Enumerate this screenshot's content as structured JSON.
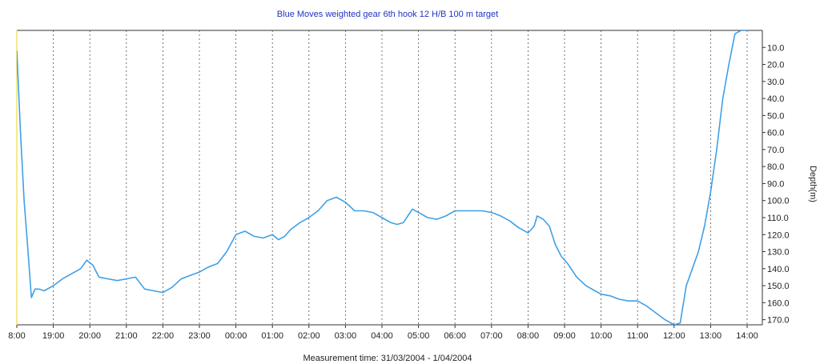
{
  "chart_data": {
    "type": "line",
    "title": "Blue Moves weighted gear 6th hook 12 H/B 100 m target",
    "xlabel": "Measurement time: 31/03/2004 - 1/04/2004",
    "ylabel": "Depth(m)",
    "x_tick_labels": [
      "8:00",
      "19:00",
      "20:00",
      "21:00",
      "22:00",
      "23:00",
      "00:00",
      "01:00",
      "02:00",
      "03:00",
      "04:00",
      "05:00",
      "06:00",
      "07:00",
      "08:00",
      "09:00",
      "10:00",
      "11:00",
      "12:00",
      "13:00",
      "14:00"
    ],
    "y_tick_labels": [
      "10.0",
      "20.0",
      "30.0",
      "40.0",
      "50.0",
      "60.0",
      "70.0",
      "80.0",
      "90.0",
      "100.0",
      "110.0",
      "120.0",
      "130.0",
      "140.0",
      "150.0",
      "160.0",
      "170.0"
    ],
    "ylim": [
      0,
      173
    ],
    "y_inverted": true,
    "grid": "vertical-dashed",
    "colors": {
      "line": "#3fa0e6",
      "title": "#1f33c7",
      "left_axis": "#f2e36a"
    },
    "series": [
      {
        "x": [
          "18:00",
          "18:06",
          "18:12",
          "18:18",
          "18:24",
          "18:30",
          "18:36",
          "18:45",
          "19:00",
          "19:15",
          "19:30",
          "19:45",
          "19:55",
          "20:05",
          "20:15",
          "20:30",
          "20:45",
          "21:00",
          "21:15",
          "21:30",
          "21:45",
          "22:00",
          "22:15",
          "22:30",
          "22:45",
          "23:00",
          "23:15",
          "23:30",
          "23:45",
          "00:00",
          "00:15",
          "00:30",
          "00:45",
          "01:00",
          "01:10",
          "01:20",
          "01:30",
          "01:45",
          "02:00",
          "02:15",
          "02:30",
          "02:45",
          "03:00",
          "03:15",
          "03:30",
          "03:45",
          "04:00",
          "04:15",
          "04:25",
          "04:35",
          "04:50",
          "05:00",
          "05:15",
          "05:30",
          "05:45",
          "06:00",
          "06:15",
          "06:30",
          "06:45",
          "07:00",
          "07:15",
          "07:30",
          "07:45",
          "08:00",
          "08:10",
          "08:15",
          "08:25",
          "08:35",
          "08:45",
          "08:55",
          "09:05",
          "09:20",
          "09:35",
          "09:50",
          "10:00",
          "10:15",
          "10:30",
          "10:45",
          "11:00",
          "11:15",
          "11:30",
          "11:45",
          "12:00",
          "12:10",
          "12:20",
          "12:30",
          "12:40",
          "12:50",
          "13:00",
          "13:10",
          "13:20",
          "13:30",
          "13:40",
          "13:50",
          "14:00",
          "14:10",
          "14:20",
          "14:30"
        ],
        "values": [
          12,
          60,
          100,
          128,
          157,
          152,
          152,
          153,
          150,
          146,
          143,
          140,
          135,
          138,
          145,
          146,
          147,
          146,
          145,
          152,
          153,
          154,
          151,
          146,
          144,
          142,
          139,
          137,
          130,
          120,
          118,
          121,
          122,
          120,
          123,
          121,
          117,
          113,
          110,
          106,
          100,
          98,
          101,
          106,
          106,
          107,
          110,
          113,
          114,
          113,
          105,
          107,
          110,
          111,
          109,
          106,
          106,
          106,
          106,
          107,
          109,
          112,
          116,
          119,
          115,
          109,
          111,
          115,
          126,
          133,
          137,
          145,
          150,
          153,
          155,
          156,
          158,
          159,
          159,
          162,
          166,
          170,
          173,
          172,
          150,
          140,
          130,
          115,
          95,
          70,
          40,
          20,
          2,
          0,
          0,
          -4,
          -3,
          -3
        ]
      }
    ]
  }
}
